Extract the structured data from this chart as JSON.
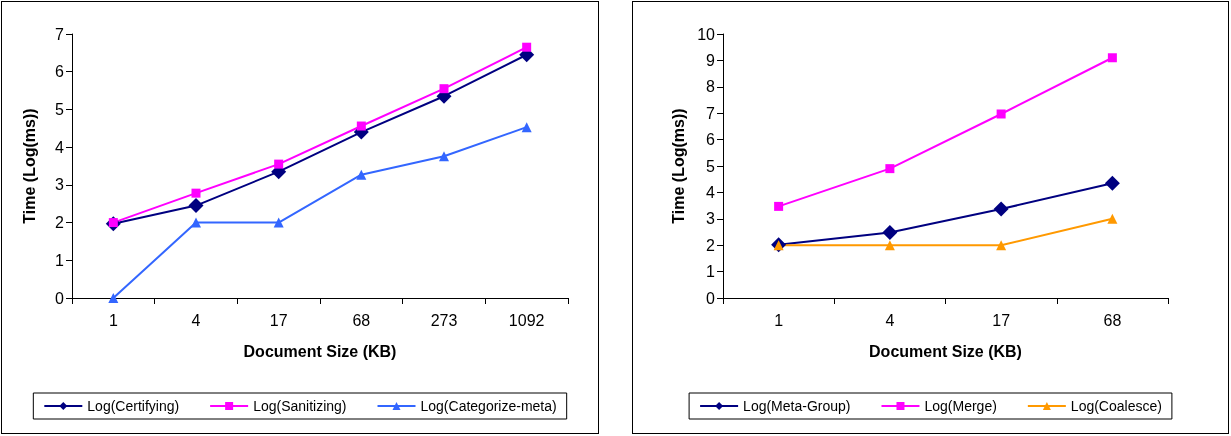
{
  "chart_data": [
    {
      "type": "line",
      "xlabel": "Document Size (KB)",
      "ylabel": "Time (Log(ms))",
      "categories": [
        "1",
        "4",
        "17",
        "68",
        "273",
        "1092"
      ],
      "ylim": [
        0,
        7
      ],
      "yticks": [
        0,
        1,
        2,
        3,
        4,
        5,
        6,
        7
      ],
      "grid": false,
      "legend": "bottom",
      "series": [
        {
          "name": "Log(Certifying)",
          "color": "#000080",
          "marker": "diamond",
          "values": [
            1.97,
            2.45,
            3.35,
            4.4,
            5.35,
            6.45
          ]
        },
        {
          "name": "Log(Sanitizing)",
          "color": "#ff00ff",
          "marker": "square",
          "values": [
            2.0,
            2.78,
            3.55,
            4.56,
            5.55,
            6.65
          ]
        },
        {
          "name": "Log(Categorize-meta)",
          "color": "#3366ff",
          "marker": "triangle",
          "values": [
            0,
            2,
            2,
            3.27,
            3.76,
            4.53
          ]
        }
      ]
    },
    {
      "type": "line",
      "xlabel": "Document Size (KB)",
      "ylabel": "Time (Log(ms))",
      "categories": [
        "1",
        "4",
        "17",
        "68"
      ],
      "ylim": [
        0,
        10
      ],
      "yticks": [
        0,
        1,
        2,
        3,
        4,
        5,
        6,
        7,
        8,
        9,
        10
      ],
      "grid": false,
      "legend": "bottom",
      "series": [
        {
          "name": "Log(Meta-Group)",
          "color": "#000080",
          "marker": "diamond",
          "values": [
            2.02,
            2.48,
            3.37,
            4.35
          ]
        },
        {
          "name": "Log(Merge)",
          "color": "#ff00ff",
          "marker": "square",
          "values": [
            3.47,
            4.9,
            6.97,
            9.1
          ]
        },
        {
          "name": "Log(Coalesce)",
          "color": "#ff9900",
          "marker": "triangle",
          "values": [
            2,
            2,
            2,
            3
          ]
        }
      ]
    }
  ]
}
